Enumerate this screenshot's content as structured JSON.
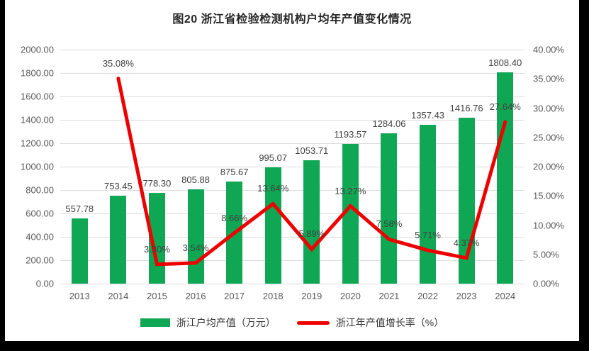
{
  "chart_data": {
    "type": "combo-bar-line",
    "title": "图20  浙江省检验检测机构户均年产值变化情况",
    "categories": [
      "2013",
      "2014",
      "2015",
      "2016",
      "2017",
      "2018",
      "2019",
      "2020",
      "2021",
      "2022",
      "2023",
      "2024"
    ],
    "series": [
      {
        "name": "浙江户均产值（万元）",
        "type": "bar",
        "color": "#0FA753",
        "axis": "left",
        "values": [
          557.78,
          753.45,
          778.3,
          805.88,
          875.67,
          995.07,
          1053.71,
          1193.57,
          1284.06,
          1357.43,
          1416.76,
          1808.4
        ],
        "labels": [
          "557.78",
          "753.45",
          "778.30",
          "805.88",
          "875.67",
          "995.07",
          "1053.71",
          "1193.57",
          "1284.06",
          "1357.43",
          "1416.76",
          "1808.40"
        ]
      },
      {
        "name": "浙江年产值增长率（%）",
        "type": "line",
        "color": "#EE0000",
        "axis": "right",
        "values": [
          null,
          35.08,
          3.3,
          3.54,
          8.66,
          13.64,
          5.89,
          13.27,
          7.58,
          5.71,
          4.37,
          27.64
        ],
        "labels": [
          "",
          "35.08%",
          "3.30%",
          "3.54%",
          "8.66%",
          "13.64%",
          "5.89%",
          "13.27%",
          "7.58%",
          "5.71%",
          "4.37%",
          "27.64%"
        ]
      }
    ],
    "left_axis": {
      "min": 0,
      "max": 2000,
      "ticks": [
        "2000.00",
        "1800.00",
        "1600.00",
        "1400.00",
        "1200.00",
        "1000.00",
        "800.00",
        "600.00",
        "400.00",
        "200.00",
        "0.00"
      ]
    },
    "right_axis": {
      "min": 0,
      "max": 40,
      "ticks": [
        "40.00%",
        "35.00%",
        "30.00%",
        "25.00%",
        "20.00%",
        "15.00%",
        "10.00%",
        "5.00%",
        "0.00%"
      ]
    },
    "grid": true,
    "legend_position": "bottom",
    "legend": [
      {
        "label": "浙江户均产值（万元）",
        "swatch": "bar",
        "color": "#0FA753"
      },
      {
        "label": "浙江年产值增长率（%）",
        "swatch": "line",
        "color": "#EE0000"
      }
    ],
    "colors": {
      "grid": "#dcdcdc",
      "tick_text": "#595959",
      "data_label_text": "#404040",
      "title_text": "#262626"
    }
  }
}
